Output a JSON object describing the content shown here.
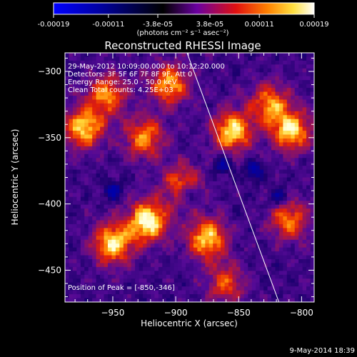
{
  "colorbar": {
    "tick_labels": [
      "-0.00019",
      "-0.00011",
      "-3.8e-05",
      "3.8e-05",
      "0.00011",
      "0.00019"
    ],
    "unit_label": "(photons cm⁻² s⁻¹ asec⁻²)",
    "range": [
      -0.00019,
      0.00019
    ],
    "colors": [
      "#0000ff",
      "#000000",
      "#6a00a0",
      "#ff3000",
      "#ffd000",
      "#ffffff"
    ]
  },
  "chart_data": {
    "type": "heatmap",
    "title": "Reconstructed RHESSI Image",
    "xlabel": "Heliocentric X (arcsec)",
    "ylabel": "Heliocentric Y (arcsec)",
    "xlim": [
      -988,
      -790
    ],
    "ylim": [
      -474,
      -286
    ],
    "x_ticks": [
      -950,
      -900,
      -850,
      -800
    ],
    "y_ticks": [
      -300,
      -350,
      -400,
      -450
    ],
    "x_tick_labels": [
      "−950",
      "−900",
      "−850",
      "−800"
    ],
    "y_tick_labels": [
      "−300",
      "−350",
      "−400",
      "−450"
    ],
    "info_lines": [
      "29-May-2012 10:09:00.000 to 10:12:20.000",
      "Detectors: 3F 5F 6F 7F 8F 9F, Att 0",
      "Energy Range: 25.0 - 50.0 keV",
      "Clean    Total counts: 4.25E+03"
    ],
    "peak_label": "Position of Peak = [-850,-346]",
    "peak_position": [
      -850,
      -346
    ],
    "limb_line": [
      [
        -891,
        -286
      ],
      [
        -818,
        -474
      ]
    ],
    "hot_spots": [
      {
        "x": -973,
        "y": -343,
        "strength": 0.85
      },
      {
        "x": -955,
        "y": -318,
        "strength": 0.7
      },
      {
        "x": -950,
        "y": -430,
        "strength": 0.9
      },
      {
        "x": -922,
        "y": -413,
        "strength": 1.0
      },
      {
        "x": -925,
        "y": -350,
        "strength": 0.7
      },
      {
        "x": -895,
        "y": -385,
        "strength": 0.6
      },
      {
        "x": -875,
        "y": -426,
        "strength": 0.85
      },
      {
        "x": -855,
        "y": -345,
        "strength": 0.9
      },
      {
        "x": -825,
        "y": -325,
        "strength": 0.7
      },
      {
        "x": -808,
        "y": -345,
        "strength": 0.85
      },
      {
        "x": -810,
        "y": -412,
        "strength": 0.65
      },
      {
        "x": -860,
        "y": -460,
        "strength": 0.55
      },
      {
        "x": -905,
        "y": -310,
        "strength": 0.75
      }
    ],
    "cold_spots": [
      {
        "x": -862,
        "y": -370
      },
      {
        "x": -838,
        "y": -375
      },
      {
        "x": -890,
        "y": -392
      },
      {
        "x": -818,
        "y": -395
      },
      {
        "x": -950,
        "y": -390
      }
    ]
  },
  "footer": {
    "timestamp": "9-May-2014 18:39"
  }
}
